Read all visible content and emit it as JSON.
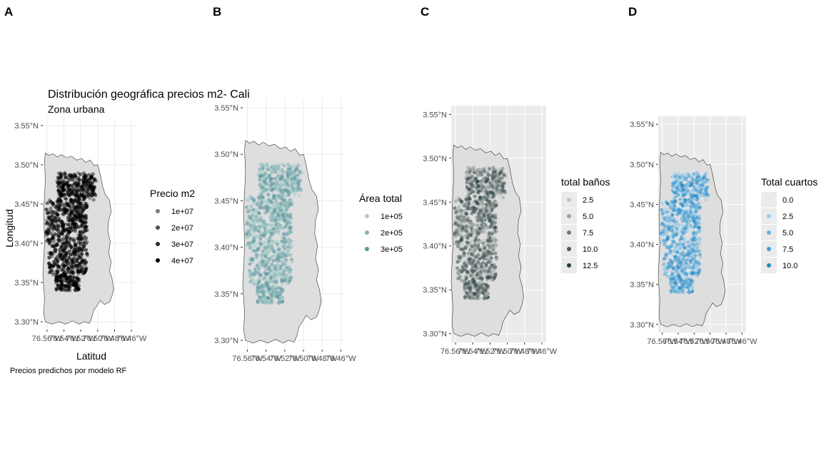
{
  "chart_data": [
    {
      "panel": "A",
      "type": "scatter",
      "title": "Distribución geográfica precios m2- Cali",
      "subtitle": "Zona urbana",
      "caption": "Precios predichos por modelo RF",
      "xlabel": "Latitud",
      "ylabel": "Longitud",
      "x_ticks": [
        "76.56°W",
        "76.54°W",
        "76.52°W",
        "76.50°W",
        "76.48°W",
        "76.46°W"
      ],
      "y_ticks": [
        "3.30°N",
        "3.35°N",
        "3.40°N",
        "3.45°N",
        "3.50°N",
        "3.55°N"
      ],
      "xlim": [
        -76.565,
        -76.455
      ],
      "ylim": [
        3.29,
        3.56
      ],
      "background": "#ffffff",
      "grid": true,
      "point_color": "#000000",
      "legend": {
        "title": "Precio m2",
        "placement": "right",
        "entries": [
          {
            "label": "1e+07",
            "value": 10000000,
            "color": "#7a7a7a"
          },
          {
            "label": "2e+07",
            "value": 20000000,
            "color": "#4f4f4f"
          },
          {
            "label": "3e+07",
            "value": 30000000,
            "color": "#2a2a2a"
          },
          {
            "label": "4e+07",
            "value": 40000000,
            "color": "#000000"
          }
        ]
      }
    },
    {
      "panel": "B",
      "type": "scatter",
      "title": "",
      "xlabel": "",
      "ylabel": "",
      "x_ticks": [
        "76.56°W",
        "76.54°W",
        "76.52°W",
        "76.50°W",
        "76.48°W",
        "76.46°W"
      ],
      "y_ticks": [
        "3.30°N",
        "3.35°N",
        "3.40°N",
        "3.45°N",
        "3.50°N",
        "3.55°N"
      ],
      "xlim": [
        -76.565,
        -76.455
      ],
      "ylim": [
        3.29,
        3.56
      ],
      "background": "#ffffff",
      "grid": true,
      "point_color": "#5b969f",
      "legend": {
        "title": "Área total",
        "placement": "right",
        "entries": [
          {
            "label": "1e+05",
            "value": 100000,
            "color": "#a9cfc9"
          },
          {
            "label": "2e+05",
            "value": 200000,
            "color": "#7fb0b4"
          },
          {
            "label": "3e+05",
            "value": 300000,
            "color": "#5b969f"
          }
        ]
      }
    },
    {
      "panel": "C",
      "type": "scatter",
      "title": "",
      "xlabel": "",
      "ylabel": "",
      "x_ticks": [
        "76.56°W",
        "76.54°W",
        "76.52°W",
        "76.50°W",
        "76.48°W",
        "76.46°W"
      ],
      "y_ticks": [
        "3.30°N",
        "3.35°N",
        "3.40°N",
        "3.45°N",
        "3.50°N",
        "3.55°N"
      ],
      "xlim": [
        -76.565,
        -76.455
      ],
      "ylim": [
        3.29,
        3.56
      ],
      "background": "#ebebeb",
      "grid": true,
      "point_color": "#243e40",
      "legend": {
        "title": "total baños",
        "placement": "right",
        "entries": [
          {
            "label": "2.5",
            "value": 2.5,
            "color": "#c0c6c5"
          },
          {
            "label": "5.0",
            "value": 5.0,
            "color": "#99a29f"
          },
          {
            "label": "7.5",
            "value": 7.5,
            "color": "#6d7a78"
          },
          {
            "label": "10.0",
            "value": 10.0,
            "color": "#475756"
          },
          {
            "label": "12.5",
            "value": 12.5,
            "color": "#243e40"
          }
        ]
      }
    },
    {
      "panel": "D",
      "type": "scatter",
      "title": "",
      "xlabel": "",
      "ylabel": "",
      "x_ticks": [
        "76.56°W",
        "76.54°W",
        "76.52°W",
        "76.50°W",
        "76.48°W",
        "76.46°W"
      ],
      "y_ticks": [
        "3.30°N",
        "3.35°N",
        "3.40°N",
        "3.45°N",
        "3.50°N",
        "3.55°N"
      ],
      "xlim": [
        -76.565,
        -76.455
      ],
      "ylim": [
        3.29,
        3.56
      ],
      "background": "#ebebeb",
      "grid": true,
      "point_color": "#1e88c7",
      "legend": {
        "title": "Total cuartos",
        "placement": "right",
        "entries": [
          {
            "label": "0.0",
            "value": 0.0,
            "color": "#d8e9f3"
          },
          {
            "label": "2.5",
            "value": 2.5,
            "color": "#9fcbe6"
          },
          {
            "label": "5.0",
            "value": 5.0,
            "color": "#6cb1dc"
          },
          {
            "label": "7.5",
            "value": 7.5,
            "color": "#3f9bd1"
          },
          {
            "label": "10.0",
            "value": 10.0,
            "color": "#1e88c7"
          }
        ]
      }
    }
  ]
}
